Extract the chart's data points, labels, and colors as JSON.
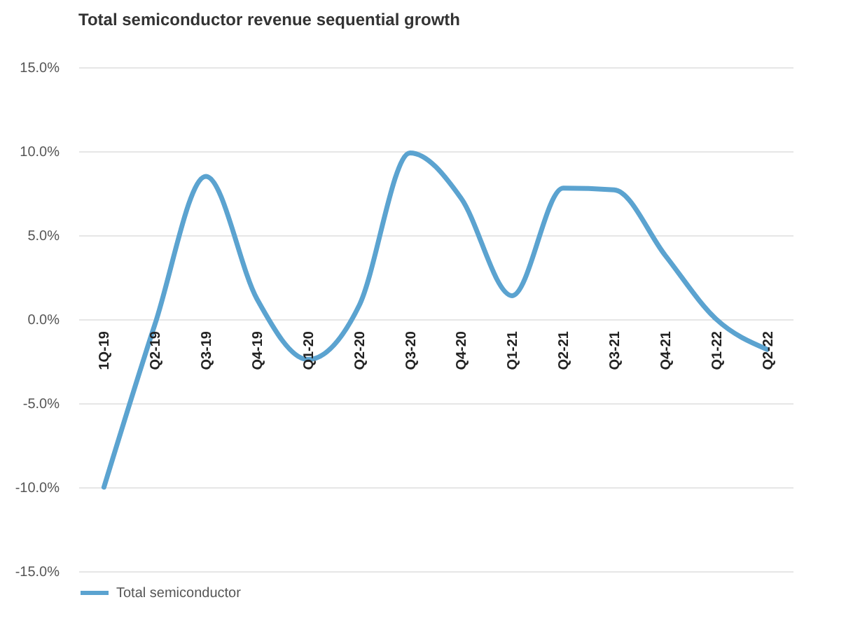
{
  "chart_data": {
    "type": "line",
    "title": "Total semiconductor  revenue sequential growth",
    "categories": [
      "1Q-19",
      "Q2-19",
      "Q3-19",
      "Q4-19",
      "Q1-20",
      "Q2-20",
      "Q3-20",
      "Q4-20",
      "Q1-21",
      "Q2-21",
      "Q3-21",
      "Q4-21",
      "Q1-22",
      "Q2-22"
    ],
    "series": [
      {
        "name": "Total semiconductor",
        "color": "#5ba3d0",
        "values": [
          -10.0,
          -0.3,
          8.5,
          1.2,
          -2.4,
          0.8,
          9.9,
          7.2,
          1.4,
          7.8,
          7.7,
          3.8,
          0.0,
          -1.8
        ]
      }
    ],
    "ylim": [
      -15,
      15
    ],
    "yticks": [
      {
        "value": -15,
        "label": "-15.0%"
      },
      {
        "value": -10,
        "label": "-10.0%"
      },
      {
        "value": -5,
        "label": "-5.0%"
      },
      {
        "value": 0,
        "label": "0.0%"
      },
      {
        "value": 5,
        "label": "5.0%"
      },
      {
        "value": 10,
        "label": "10.0%"
      },
      {
        "value": 15,
        "label": "15.0%"
      }
    ],
    "grid": "y",
    "legend": "bottom",
    "marker": "none",
    "line_style": "solid"
  }
}
